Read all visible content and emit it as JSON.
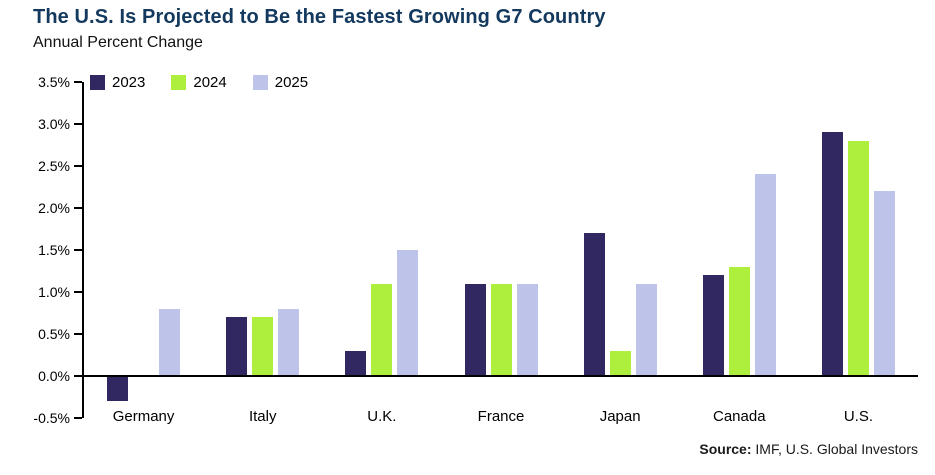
{
  "header": {
    "title": "The U.S. Is Projected to Be the Fastest Growing G7 Country",
    "subtitle": "Annual Percent Change"
  },
  "source": {
    "label": "Source:",
    "text": " IMF, U.S. Global Investors"
  },
  "colors": {
    "title_navy": "#14395e",
    "axis_black": "#000000",
    "series_2023": "#322861",
    "series_2024": "#aeee3d",
    "series_2025": "#bdc3e9"
  },
  "chart_data": {
    "type": "bar",
    "title": "The U.S. Is Projected to Be the Fastest Growing G7 Country",
    "subtitle": "Annual Percent Change",
    "categories": [
      "Germany",
      "Italy",
      "U.K.",
      "France",
      "Japan",
      "Canada",
      "U.S."
    ],
    "series": [
      {
        "name": "2023",
        "color": "#322861",
        "values": [
          -0.3,
          0.7,
          0.3,
          1.1,
          1.7,
          1.2,
          2.9
        ]
      },
      {
        "name": "2024",
        "color": "#aeee3d",
        "values": [
          0.0,
          0.7,
          1.1,
          1.1,
          0.3,
          1.3,
          2.8
        ]
      },
      {
        "name": "2025",
        "color": "#bdc3e9",
        "values": [
          0.8,
          0.8,
          1.5,
          1.1,
          1.1,
          2.4,
          2.2
        ]
      }
    ],
    "ylabel": "",
    "xlabel": "",
    "ylim": [
      -0.5,
      3.5
    ],
    "ytick_step": 0.5,
    "yticks": [
      "3.5%",
      "3.0%",
      "2.5%",
      "2.0%",
      "1.5%",
      "1.0%",
      "0.5%",
      "0.0%",
      "-0.5%"
    ],
    "grid": false,
    "legend_position": "top-left"
  }
}
